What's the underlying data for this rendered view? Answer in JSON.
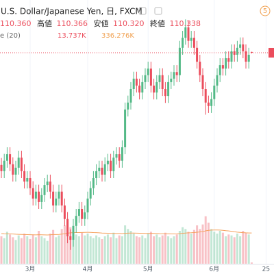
{
  "header": {
    "symbol": "U.S. Dollar/Japanese Yen, 日, FXCM",
    "open": "110.360",
    "high_label": "高値",
    "high": "110.366",
    "low_label": "安値",
    "low": "110.320",
    "close_label": "終値",
    "close": "110.338",
    "volume_study": "e (20)",
    "volume_last": "13.737K",
    "volume_ma_last": "336.276K",
    "badge": "5"
  },
  "chart_data": {
    "type": "candlestick",
    "categories": [
      null,
      null,
      null,
      null,
      null,
      null,
      null,
      null,
      null,
      null,
      "3月",
      null,
      null,
      null,
      null,
      null,
      null,
      null,
      null,
      null,
      null,
      null,
      null,
      null,
      null,
      null,
      null,
      null,
      null,
      null,
      "4月",
      null,
      null,
      null,
      null,
      null,
      null,
      null,
      null,
      null,
      null,
      null,
      null,
      null,
      null,
      null,
      null,
      null,
      null,
      null,
      null,
      "5月",
      null,
      null,
      null,
      null,
      null,
      null,
      null,
      null,
      null,
      null,
      null,
      null,
      null,
      null,
      null,
      null,
      null,
      null,
      null,
      null,
      null,
      null,
      "6月",
      null,
      null,
      null,
      null,
      null,
      null,
      null,
      null,
      null,
      null,
      null,
      null,
      null,
      null,
      null,
      null,
      null,
      "25"
    ],
    "open": [
      107.1,
      106.92,
      107.22,
      107.41,
      107.12,
      106.82,
      107.02,
      107.31,
      106.92,
      106.62,
      106.72,
      106.43,
      106.13,
      106.33,
      106.03,
      106.23,
      106.52,
      106.62,
      106.33,
      105.93,
      106.13,
      106.33,
      105.93,
      105.54,
      105.04,
      104.94,
      105.34,
      105.63,
      105.83,
      105.54,
      105.73,
      106.13,
      106.43,
      106.72,
      106.92,
      107.02,
      106.82,
      107.12,
      107.22,
      106.92,
      107.31,
      107.41,
      107.22,
      107.61,
      108.7,
      108.9,
      109.29,
      109.59,
      109.39,
      109.19,
      109.49,
      109.69,
      109.88,
      109.39,
      109.19,
      109.49,
      109.69,
      109.29,
      109.09,
      109.49,
      109.59,
      109.78,
      109.69,
      110.48,
      110.77,
      111.07,
      110.68,
      110.77,
      110.48,
      110.08,
      109.69,
      109.29,
      108.9,
      108.8,
      109.0,
      109.39,
      109.69,
      109.98,
      109.88,
      110.18,
      110.08,
      110.38,
      110.28,
      110.48,
      110.58,
      110.38,
      110.08,
      110.36,
      null,
      null,
      null,
      null,
      null
    ],
    "high": [
      107.3,
      107.42,
      107.61,
      107.61,
      107.32,
      107.22,
      107.51,
      107.51,
      107.12,
      106.92,
      106.92,
      106.63,
      106.53,
      106.53,
      106.43,
      106.72,
      106.82,
      106.82,
      106.53,
      106.33,
      106.53,
      106.53,
      106.13,
      105.74,
      105.24,
      105.54,
      105.83,
      106.03,
      106.03,
      105.93,
      106.33,
      106.63,
      106.92,
      107.12,
      107.22,
      107.22,
      107.32,
      107.42,
      107.42,
      107.51,
      107.61,
      107.61,
      107.81,
      108.9,
      109.1,
      109.49,
      109.79,
      109.79,
      109.59,
      109.69,
      109.89,
      110.08,
      110.08,
      109.59,
      109.69,
      109.89,
      109.89,
      109.49,
      109.69,
      109.79,
      109.98,
      109.98,
      110.68,
      110.97,
      111.3,
      111.27,
      110.97,
      110.97,
      110.68,
      110.28,
      109.89,
      109.49,
      109.1,
      109.2,
      109.59,
      109.89,
      110.18,
      110.18,
      110.38,
      110.38,
      110.58,
      110.58,
      110.68,
      110.78,
      110.78,
      110.58,
      110.48,
      110.366,
      null,
      null,
      null,
      null,
      null
    ],
    "low": [
      106.72,
      106.72,
      107.02,
      106.92,
      106.62,
      106.62,
      106.82,
      106.72,
      106.42,
      106.42,
      106.23,
      105.93,
      105.93,
      105.83,
      105.83,
      106.03,
      106.32,
      106.13,
      105.73,
      105.73,
      105.93,
      105.73,
      105.34,
      104.84,
      104.65,
      104.74,
      105.14,
      105.43,
      105.34,
      105.34,
      105.53,
      105.93,
      106.23,
      106.52,
      106.72,
      106.62,
      106.62,
      106.92,
      106.72,
      106.72,
      107.11,
      107.02,
      107.02,
      107.41,
      108.5,
      108.7,
      109.09,
      109.19,
      108.99,
      108.99,
      109.29,
      109.49,
      109.19,
      108.99,
      108.99,
      109.29,
      109.09,
      108.89,
      108.89,
      109.29,
      109.39,
      109.49,
      109.49,
      110.28,
      110.57,
      110.48,
      110.48,
      110.28,
      109.88,
      109.49,
      109.09,
      108.55,
      108.6,
      108.6,
      108.8,
      109.19,
      109.49,
      109.68,
      109.68,
      109.88,
      109.88,
      110.08,
      110.08,
      110.28,
      110.18,
      109.88,
      109.88,
      110.32,
      null,
      null,
      null,
      null,
      null
    ],
    "close": [
      106.92,
      107.22,
      107.41,
      107.12,
      106.82,
      107.02,
      107.31,
      106.92,
      106.62,
      106.72,
      106.43,
      106.13,
      106.33,
      106.03,
      106.23,
      106.52,
      106.62,
      106.33,
      105.93,
      106.13,
      106.33,
      105.93,
      105.54,
      105.04,
      104.94,
      105.34,
      105.63,
      105.83,
      105.54,
      105.73,
      106.13,
      106.43,
      106.72,
      106.92,
      107.02,
      106.82,
      107.12,
      107.22,
      106.92,
      107.31,
      107.41,
      107.22,
      107.61,
      108.7,
      108.9,
      109.29,
      109.59,
      109.39,
      109.19,
      109.49,
      109.69,
      109.88,
      109.39,
      109.19,
      109.49,
      109.69,
      109.29,
      109.09,
      109.49,
      109.59,
      109.78,
      109.69,
      110.48,
      110.77,
      111.07,
      110.68,
      110.77,
      110.48,
      110.08,
      109.69,
      109.29,
      108.9,
      108.8,
      109.0,
      109.39,
      109.69,
      109.98,
      109.88,
      110.18,
      110.08,
      110.38,
      110.28,
      110.48,
      110.58,
      110.38,
      110.08,
      110.28,
      110.338,
      null,
      null,
      null,
      null,
      null
    ],
    "up_color": "#53b987",
    "down_color": "#eb4d5c",
    "ylim": [
      104.15,
      111.86
    ],
    "last_price_line": true,
    "grid": true,
    "volume": {
      "values": [
        300,
        280,
        350,
        320,
        290,
        260,
        310,
        280,
        330,
        300,
        270,
        320,
        290,
        360,
        300,
        280,
        250,
        330,
        370,
        290,
        310,
        380,
        420,
        460,
        400,
        350,
        320,
        300,
        340,
        310,
        330,
        300,
        280,
        310,
        290,
        270,
        300,
        320,
        290,
        340,
        280,
        310,
        300,
        420,
        380,
        360,
        330,
        300,
        290,
        310,
        280,
        330,
        350,
        300,
        320,
        290,
        310,
        340,
        300,
        280,
        300,
        320,
        360,
        400,
        380,
        350,
        330,
        370,
        420,
        380,
        430,
        520,
        450,
        380,
        350,
        330,
        360,
        340,
        300,
        320,
        310,
        290,
        330,
        300,
        360,
        340,
        320,
        13.737,
        null,
        null,
        null,
        null,
        null
      ],
      "ma": [
        330,
        328,
        327,
        326,
        325,
        323,
        322,
        321,
        320,
        319,
        318,
        317,
        316,
        318,
        317,
        316,
        315,
        317,
        320,
        320,
        321,
        324,
        328,
        334,
        338,
        340,
        341,
        341,
        342,
        343,
        344,
        343,
        341,
        340,
        338,
        336,
        335,
        334,
        332,
        332,
        331,
        331,
        330,
        333,
        335,
        336,
        336,
        335,
        334,
        333,
        332,
        332,
        333,
        332,
        331,
        329,
        328,
        328,
        327,
        326,
        326,
        327,
        329,
        333,
        336,
        338,
        339,
        341,
        345,
        348,
        352,
        360,
        366,
        368,
        369,
        369,
        368,
        366,
        362,
        359,
        355,
        350,
        346,
        343,
        340,
        338,
        337,
        336.276,
        null,
        null,
        null,
        null,
        null
      ],
      "ylim": [
        0,
        690
      ],
      "ma_color": "#f5a05a"
    }
  }
}
